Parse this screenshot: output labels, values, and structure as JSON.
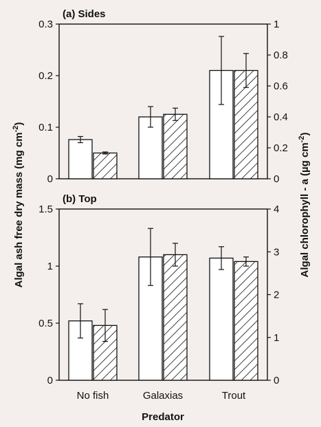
{
  "chart_data": [
    {
      "type": "bar",
      "title": "(a) Sides",
      "categories": [
        "No fish",
        "Galaxias",
        "Trout"
      ],
      "series": [
        {
          "style": "open",
          "values": [
            0.076,
            0.12,
            0.21
          ],
          "errors": [
            0.006,
            0.02,
            0.066
          ]
        },
        {
          "style": "hatched",
          "values": [
            0.05,
            0.125,
            0.21
          ],
          "errors": [
            0.002,
            0.012,
            0.033
          ]
        }
      ],
      "ylim": [
        0,
        0.3
      ],
      "yticks": [
        "0",
        "0.1",
        "0.2",
        "0.3"
      ],
      "y2lim": [
        0,
        1
      ],
      "y2ticks": [
        "0",
        "0.2",
        "0.4",
        "0.6",
        "0.8",
        "1"
      ],
      "grid": false
    },
    {
      "type": "bar",
      "title": "(b) Top",
      "categories": [
        "No fish",
        "Galaxias",
        "Trout"
      ],
      "series": [
        {
          "style": "open",
          "values": [
            0.52,
            1.08,
            1.07
          ],
          "errors": [
            0.15,
            0.25,
            0.1
          ]
        },
        {
          "style": "hatched",
          "values": [
            0.48,
            1.1,
            1.04
          ],
          "errors": [
            0.14,
            0.1,
            0.04
          ]
        }
      ],
      "ylim": [
        0,
        1.5
      ],
      "yticks": [
        "0",
        "0.5",
        "1",
        "1.5"
      ],
      "y2lim": [
        0,
        4
      ],
      "y2ticks": [
        "0",
        "1",
        "2",
        "3",
        "4"
      ],
      "grid": false
    }
  ],
  "labels": {
    "ylabel": "Algal ash free dry mass (mg cm",
    "ylabel_sup": "-2",
    "ylabel_end": ")",
    "y2label": "Algal chlorophyll - a (µg cm",
    "y2label_sup": "-2",
    "y2label_end": ")",
    "xlabel": "Predator"
  },
  "colors": {
    "ink": "#111111",
    "paper": "#f4efec",
    "bar_fill": "#ffffff"
  }
}
